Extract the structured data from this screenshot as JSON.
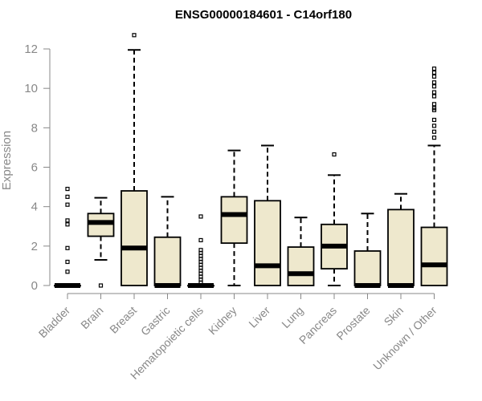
{
  "chart_data": {
    "type": "boxplot",
    "title": "ENSG00000184601 - C14orf180",
    "xlabel": "",
    "ylabel": "Expression",
    "ylim": [
      0,
      12.5
    ],
    "yticks": [
      0,
      2,
      4,
      6,
      8,
      10,
      12
    ],
    "grid": false,
    "colors": {
      "box_fill": "#eee8cd",
      "stroke": "#000000",
      "axis": "#888888"
    },
    "categories": [
      "Bladder",
      "Brain",
      "Breast",
      "Gastric",
      "Hematopoietic cells",
      "Kidney",
      "Liver",
      "Lung",
      "Pancreas",
      "Prostate",
      "Skin",
      "Unknown / Other"
    ],
    "boxes": [
      {
        "category": "Bladder",
        "whisker_low": 0,
        "q1": 0,
        "median": 0,
        "q3": 0,
        "whisker_high": 0,
        "outliers": [
          0.7,
          1.2,
          1.9,
          3.1,
          3.3,
          4.1,
          4.5,
          4.9
        ]
      },
      {
        "category": "Brain",
        "whisker_low": 1.3,
        "q1": 2.5,
        "median": 3.2,
        "q3": 3.65,
        "whisker_high": 4.45,
        "outliers": [
          0
        ]
      },
      {
        "category": "Breast",
        "whisker_low": 0,
        "q1": 0,
        "median": 1.9,
        "q3": 4.8,
        "whisker_high": 11.95,
        "outliers": [
          12.7
        ]
      },
      {
        "category": "Gastric",
        "whisker_low": 0,
        "q1": 0,
        "median": 0,
        "q3": 2.45,
        "whisker_high": 4.5,
        "outliers": []
      },
      {
        "category": "Hematopoietic cells",
        "whisker_low": 0,
        "q1": 0,
        "median": 0,
        "q3": 0,
        "whisker_high": 0,
        "outliers": [
          0.15,
          0.3,
          0.45,
          0.6,
          0.75,
          0.9,
          1.05,
          1.2,
          1.35,
          1.5,
          1.65,
          1.8,
          2.3,
          3.5
        ]
      },
      {
        "category": "Kidney",
        "whisker_low": 0,
        "q1": 2.15,
        "median": 3.6,
        "q3": 4.5,
        "whisker_high": 6.85,
        "outliers": []
      },
      {
        "category": "Liver",
        "whisker_low": 0,
        "q1": 0,
        "median": 1,
        "q3": 4.3,
        "whisker_high": 7.1,
        "outliers": []
      },
      {
        "category": "Lung",
        "whisker_low": 0,
        "q1": 0,
        "median": 0.6,
        "q3": 1.95,
        "whisker_high": 3.45,
        "outliers": []
      },
      {
        "category": "Pancreas",
        "whisker_low": 0,
        "q1": 0.85,
        "median": 2,
        "q3": 3.1,
        "whisker_high": 5.6,
        "outliers": [
          6.65
        ]
      },
      {
        "category": "Prostate",
        "whisker_low": 0,
        "q1": 0,
        "median": 0,
        "q3": 1.75,
        "whisker_high": 3.65,
        "outliers": []
      },
      {
        "category": "Skin",
        "whisker_low": 0,
        "q1": 0,
        "median": 0,
        "q3": 3.85,
        "whisker_high": 4.65,
        "outliers": []
      },
      {
        "category": "Unknown / Other",
        "whisker_low": 0,
        "q1": 0,
        "median": 1.05,
        "q3": 2.95,
        "whisker_high": 7.1,
        "outliers": [
          7.5,
          7.8,
          8.1,
          8.4,
          8.9,
          9.0,
          9.2,
          9.6,
          9.8,
          10.1,
          10.3,
          10.6,
          10.8,
          11.0
        ]
      }
    ]
  }
}
